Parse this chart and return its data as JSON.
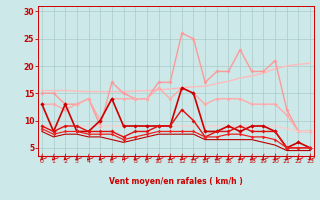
{
  "bg_color": "#cce8e8",
  "grid_color": "#aacccc",
  "xlabel": "Vent moyen/en rafales ( km/h )",
  "xticks": [
    0,
    1,
    2,
    3,
    4,
    5,
    6,
    7,
    8,
    9,
    10,
    11,
    12,
    13,
    14,
    15,
    16,
    17,
    18,
    19,
    20,
    21,
    22,
    23
  ],
  "yticks": [
    5,
    10,
    15,
    20,
    25,
    30
  ],
  "ylim": [
    3.5,
    31
  ],
  "xlim": [
    -0.3,
    23.3
  ],
  "series": [
    {
      "x": [
        0,
        1,
        2,
        3,
        4,
        5,
        6,
        7,
        8,
        9,
        10,
        11,
        12,
        13,
        14,
        15,
        16,
        17,
        18,
        19,
        20,
        21,
        22,
        23
      ],
      "y": [
        15.5,
        15.5,
        15.5,
        15.4,
        15.3,
        15.3,
        15.3,
        15.3,
        15.4,
        15.5,
        15.6,
        15.8,
        16.0,
        16.2,
        16.3,
        16.8,
        17.2,
        17.8,
        18.2,
        18.7,
        19.5,
        20.0,
        20.3,
        20.5
      ],
      "color": "#ffbbbb",
      "lw": 1.0,
      "marker": null,
      "ms": 0
    },
    {
      "x": [
        0,
        1,
        2,
        3,
        4,
        5,
        6,
        7,
        8,
        9,
        10,
        11,
        12,
        13,
        14,
        15,
        16,
        17,
        18,
        19,
        20,
        21,
        22,
        23
      ],
      "y": [
        15,
        15,
        13,
        13,
        14,
        9,
        17,
        15,
        14,
        14,
        17,
        17,
        26,
        25,
        17,
        19,
        19,
        23,
        19,
        19,
        21,
        12,
        8,
        8
      ],
      "color": "#ff9999",
      "lw": 1.0,
      "marker": "D",
      "ms": 2.0
    },
    {
      "x": [
        0,
        1,
        2,
        3,
        4,
        5,
        6,
        7,
        8,
        9,
        10,
        11,
        12,
        13,
        14,
        15,
        16,
        17,
        18,
        19,
        20,
        21,
        22,
        23
      ],
      "y": [
        13,
        13,
        12,
        13,
        14,
        10,
        14,
        14,
        14,
        14,
        16,
        14,
        16,
        15,
        13,
        14,
        14,
        14,
        13,
        13,
        13,
        11,
        8,
        8
      ],
      "color": "#ffaaaa",
      "lw": 1.0,
      "marker": "D",
      "ms": 2.0
    },
    {
      "x": [
        0,
        1,
        2,
        3,
        4,
        5,
        6,
        7,
        8,
        9,
        10,
        11,
        12,
        13,
        14,
        15,
        16,
        17,
        18,
        19,
        20,
        21,
        22,
        23
      ],
      "y": [
        9.0,
        9.0,
        9.0,
        9.0,
        9.0,
        9.0,
        9.0,
        9.0,
        9.0,
        9.0,
        9.0,
        9.0,
        9.0,
        9.0,
        9.0,
        9.0,
        9.0,
        9.0,
        9.0,
        9.0,
        9.0,
        8.5,
        8.0,
        8.0
      ],
      "color": "#ffcccc",
      "lw": 0.9,
      "marker": null,
      "ms": 0
    },
    {
      "x": [
        0,
        1,
        2,
        3,
        4,
        5,
        6,
        7,
        8,
        9,
        10,
        11,
        12,
        13,
        14,
        15,
        16,
        17,
        18,
        19,
        20,
        21,
        22,
        23
      ],
      "y": [
        13,
        8,
        13,
        8,
        8,
        10,
        14,
        9,
        9,
        9,
        9,
        9,
        16,
        15,
        8,
        8,
        9,
        8,
        9,
        9,
        8,
        5,
        6,
        5
      ],
      "color": "#cc0000",
      "lw": 1.2,
      "marker": "D",
      "ms": 2.2
    },
    {
      "x": [
        0,
        1,
        2,
        3,
        4,
        5,
        6,
        7,
        8,
        9,
        10,
        11,
        12,
        13,
        14,
        15,
        16,
        17,
        18,
        19,
        20,
        21,
        22,
        23
      ],
      "y": [
        9,
        8,
        9,
        9,
        8,
        8,
        8,
        7,
        8,
        8,
        9,
        9,
        12,
        10,
        7,
        8,
        8,
        9,
        8,
        8,
        8,
        5,
        5,
        5
      ],
      "color": "#dd1111",
      "lw": 1.0,
      "marker": "D",
      "ms": 2.0
    },
    {
      "x": [
        0,
        1,
        2,
        3,
        4,
        5,
        6,
        7,
        8,
        9,
        10,
        11,
        12,
        13,
        14,
        15,
        16,
        17,
        18,
        19,
        20,
        21,
        22,
        23
      ],
      "y": [
        8.5,
        7.5,
        8.0,
        8.0,
        7.5,
        7.5,
        7.5,
        6.5,
        7.0,
        7.5,
        8.0,
        8.0,
        8.0,
        8.0,
        7.0,
        7.0,
        7.5,
        7.5,
        7.0,
        7.0,
        6.5,
        5.0,
        5.0,
        5.0
      ],
      "color": "#ee2222",
      "lw": 0.9,
      "marker": "D",
      "ms": 1.8
    },
    {
      "x": [
        0,
        1,
        2,
        3,
        4,
        5,
        6,
        7,
        8,
        9,
        10,
        11,
        12,
        13,
        14,
        15,
        16,
        17,
        18,
        19,
        20,
        21,
        22,
        23
      ],
      "y": [
        8,
        7,
        7.5,
        7.5,
        7,
        7,
        6.5,
        6,
        6.5,
        7,
        7.5,
        7.5,
        7.5,
        7.5,
        6.5,
        6.5,
        6.5,
        6.5,
        6.5,
        6.0,
        5.5,
        4.5,
        4.5,
        4.5
      ],
      "color": "#bb0000",
      "lw": 0.8,
      "marker": null,
      "ms": 0
    }
  ],
  "arrow_color": "#cc0000",
  "xlabel_color": "#cc0000",
  "tick_color": "#cc0000",
  "axis_color": "#cc0000"
}
